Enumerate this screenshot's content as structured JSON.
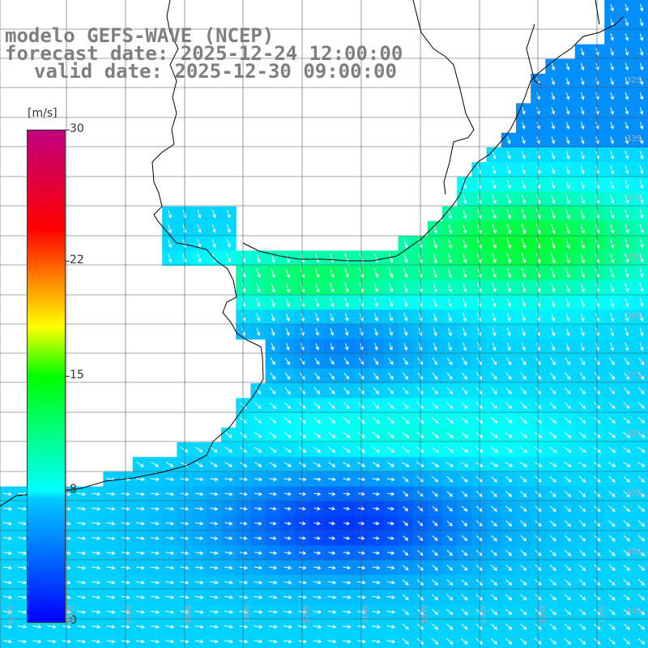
{
  "title": {
    "line1": "modelo GEFS-WAVE (NCEP)",
    "line2": "forecast date: 2025-12-24 12:00:00",
    "line3": "valid date: 2025-12-30 09:00:00"
  },
  "colorbar": {
    "unit": "[m/s]",
    "ticks": [
      "0",
      "8",
      "15",
      "22",
      "30"
    ],
    "tick_values": [
      0,
      8,
      15,
      22,
      30
    ],
    "min": 0,
    "max": 30,
    "colors": [
      "#0000ff",
      "#00c8ff",
      "#00ffff",
      "#00ff70",
      "#00ff00",
      "#ffff00",
      "#ff8000",
      "#ff0000",
      "#c00080"
    ]
  },
  "map": {
    "lat_labels": [
      "32S",
      "33S",
      "34S",
      "35S",
      "36S",
      "37S",
      "38S",
      "39S",
      "40S",
      "41S"
    ],
    "lon_labels": [
      "62W",
      "61W",
      "60W",
      "59W",
      "58W",
      "57W",
      "56W",
      "55W",
      "54W",
      "53W",
      "52W"
    ],
    "colors": {
      "land": "#ffffff",
      "grid": "#555555",
      "coast": "#000000",
      "arrow": "#ffffff"
    }
  }
}
